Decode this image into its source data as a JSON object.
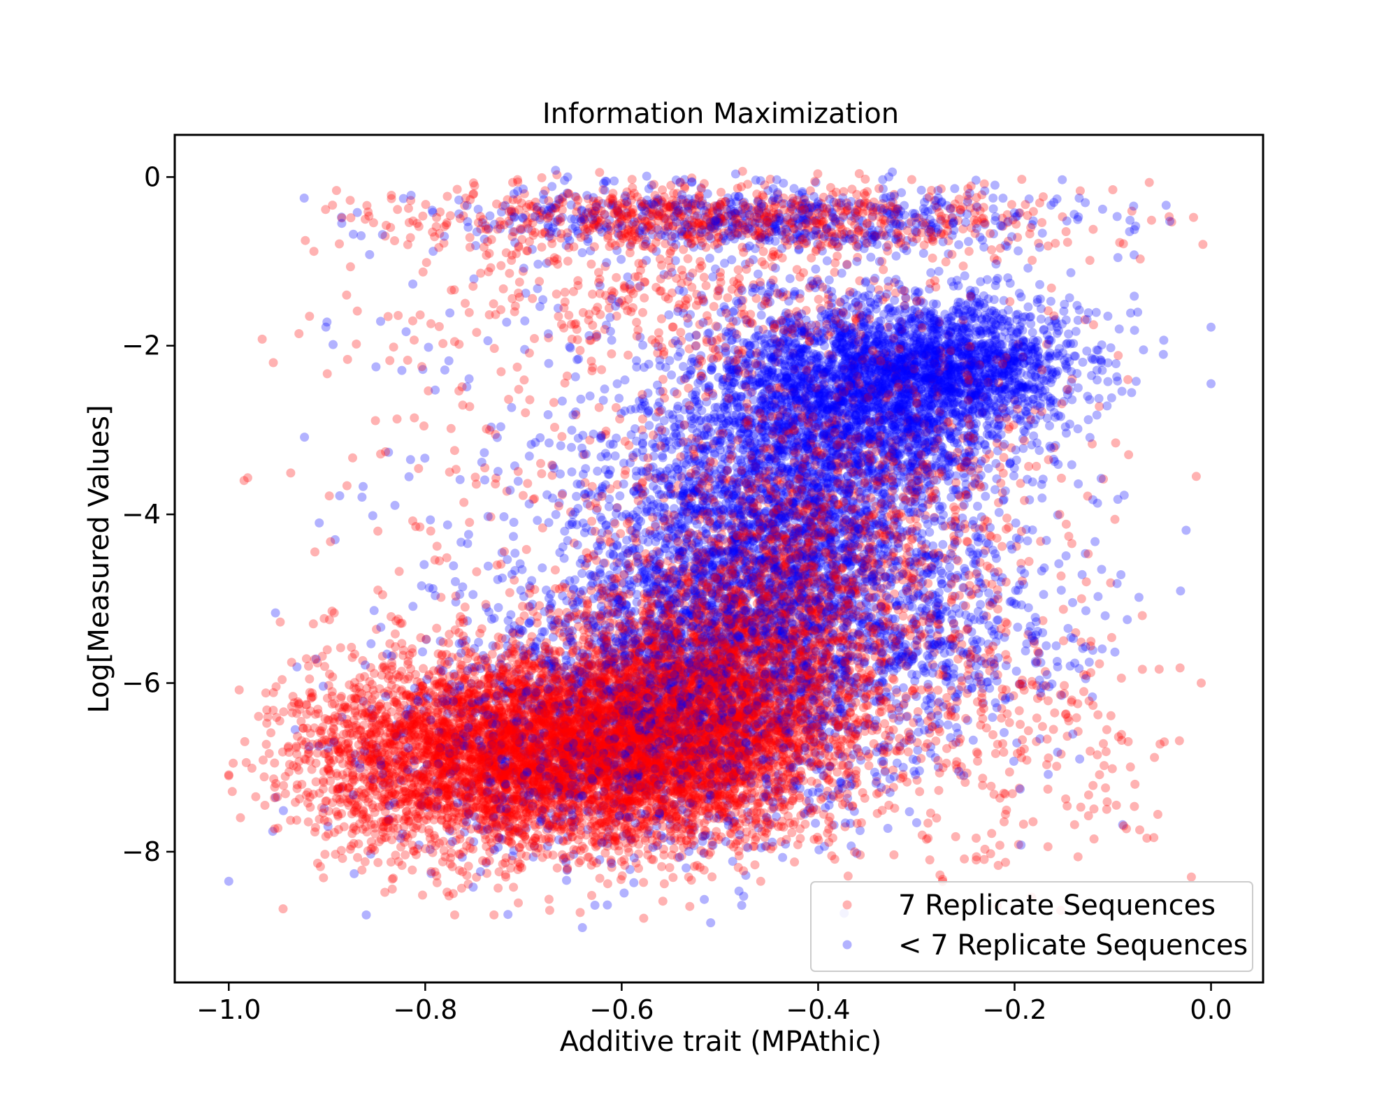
{
  "chart_data": {
    "type": "scatter",
    "title": "Information Maximization",
    "xlabel": "Additive trait (MPAthic)",
    "ylabel": "Log[Measured Values]",
    "xlim": [
      -1.055,
      0.053
    ],
    "ylim": [
      -9.55,
      0.5
    ],
    "xticks": [
      -1.0,
      -0.8,
      -0.6,
      -0.4,
      -0.2,
      0.0
    ],
    "xtick_labels": [
      "−1.0",
      "−0.8",
      "−0.6",
      "−0.4",
      "−0.2",
      "0.0"
    ],
    "yticks": [
      0,
      -2,
      -4,
      -6,
      -8
    ],
    "ytick_labels": [
      "0",
      "−2",
      "−4",
      "−6",
      "−8"
    ],
    "grid": false,
    "legend_position": "lower-right",
    "series": [
      {
        "name": "7 Replicate Sequences",
        "color": "#ff0000",
        "opacity": 0.3,
        "clusters": [
          {
            "cx": -0.62,
            "cy": -6.75,
            "sx": 0.11,
            "sy": 0.6,
            "n": 5200
          },
          {
            "cx": -0.5,
            "cy": -6.1,
            "sx": 0.08,
            "sy": 0.7,
            "n": 1600
          },
          {
            "cx": -0.8,
            "cy": -6.9,
            "sx": 0.08,
            "sy": 0.55,
            "n": 1400
          },
          {
            "cx": -0.44,
            "cy": -5.0,
            "sx": 0.09,
            "sy": 0.9,
            "n": 1300
          },
          {
            "cx": -0.5,
            "cy": -0.5,
            "sx": 0.17,
            "sy": 0.2,
            "n": 800
          },
          {
            "cx": -0.52,
            "cy": -1.6,
            "sx": 0.14,
            "sy": 0.5,
            "n": 300
          },
          {
            "cx": -0.35,
            "cy": -3.3,
            "sx": 0.1,
            "sy": 1.0,
            "n": 600
          },
          {
            "cx": -0.2,
            "cy": -6.6,
            "sx": 0.07,
            "sy": 0.9,
            "n": 250
          },
          {
            "cx": -0.6,
            "cy": -4.0,
            "sx": 0.2,
            "sy": 2.0,
            "n": 420
          }
        ],
        "extra_points": [
          [
            -0.1,
            -0.15
          ],
          [
            -1.0,
            -7.1
          ],
          [
            -0.01,
            -6.0
          ],
          [
            -0.015,
            -3.55
          ],
          [
            -0.02,
            -8.3
          ],
          [
            -0.77,
            -8.75
          ],
          [
            -0.73,
            -8.75
          ],
          [
            -0.12,
            -0.62
          ],
          [
            -0.88,
            -1.4
          ],
          [
            -0.07,
            -5.2
          ]
        ]
      },
      {
        "name": "< 7 Replicate Sequences",
        "color": "#0000ff",
        "opacity": 0.3,
        "clusters": [
          {
            "cx": -0.36,
            "cy": -2.6,
            "sx": 0.09,
            "sy": 0.6,
            "n": 2600
          },
          {
            "cx": -0.25,
            "cy": -2.2,
            "sx": 0.06,
            "sy": 0.35,
            "n": 900
          },
          {
            "cx": -0.45,
            "cy": -4.3,
            "sx": 0.09,
            "sy": 0.9,
            "n": 2200
          },
          {
            "cx": -0.53,
            "cy": -5.8,
            "sx": 0.11,
            "sy": 0.8,
            "n": 1500
          },
          {
            "cx": -0.45,
            "cy": -0.5,
            "sx": 0.16,
            "sy": 0.2,
            "n": 600
          },
          {
            "cx": -0.6,
            "cy": -6.9,
            "sx": 0.13,
            "sy": 0.6,
            "n": 900
          },
          {
            "cx": -0.3,
            "cy": -5.3,
            "sx": 0.08,
            "sy": 0.7,
            "n": 500
          },
          {
            "cx": -0.5,
            "cy": -3.2,
            "sx": 0.2,
            "sy": 1.6,
            "n": 400
          }
        ],
        "extra_points": [
          [
            -1.0,
            -8.35
          ],
          [
            -0.655,
            0.0
          ],
          [
            -0.86,
            -8.75
          ],
          [
            -0.9,
            -1.72
          ],
          [
            -0.885,
            -0.55
          ],
          [
            0.0,
            -2.45
          ],
          [
            0.0,
            -1.78
          ],
          [
            -0.09,
            -7.68
          ],
          [
            -0.64,
            -8.9
          ],
          [
            -0.16,
            -0.3
          ]
        ]
      }
    ]
  }
}
